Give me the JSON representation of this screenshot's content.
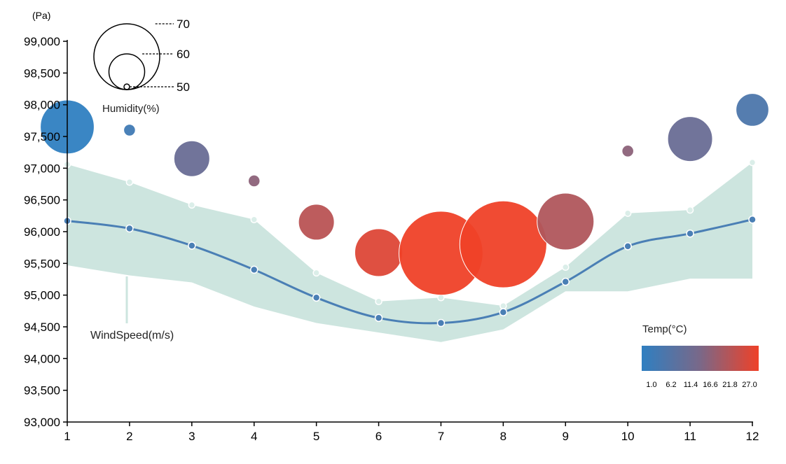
{
  "chart_data": {
    "type": "line",
    "y_unit_label": "(Pa)",
    "x": [
      1,
      2,
      3,
      4,
      5,
      6,
      7,
      8,
      9,
      10,
      11,
      12
    ],
    "xticks": [
      "1",
      "2",
      "3",
      "4",
      "5",
      "6",
      "7",
      "8",
      "9",
      "10",
      "11",
      "12"
    ],
    "ylim": [
      93000,
      99000
    ],
    "yticks": [
      "93,000",
      "93,500",
      "94,000",
      "94,500",
      "95,000",
      "95,500",
      "96,000",
      "96,500",
      "97,000",
      "97,500",
      "98,000",
      "98,500",
      "99,000"
    ],
    "ytick_values": [
      93000,
      93500,
      94000,
      94500,
      95000,
      95500,
      96000,
      96500,
      97000,
      97500,
      98000,
      98500,
      99000
    ],
    "pressure_line": [
      96170,
      96050,
      95780,
      95400,
      94960,
      94640,
      94560,
      94730,
      95210,
      95770,
      95970,
      96190
    ],
    "band_upper": [
      97060,
      96780,
      96420,
      96190,
      95350,
      94900,
      94960,
      94830,
      95440,
      96290,
      96340,
      97090
    ],
    "band_lower": [
      95470,
      95310,
      95200,
      94820,
      94560,
      94410,
      94260,
      94460,
      95060,
      95060,
      95260,
      95260
    ],
    "band_label": "WindSpeed(m/s)",
    "bubbles": {
      "y": [
        97650,
        97600,
        97150,
        96800,
        96150,
        95670,
        95660,
        95800,
        96160,
        97270,
        97460,
        97920
      ],
      "humidity": [
        66,
        52,
        60,
        52,
        60,
        64,
        76,
        77,
        67,
        52,
        63,
        59
      ],
      "temp": [
        1.0,
        4.0,
        11.0,
        16.0,
        21.0,
        25.0,
        27.0,
        27.0,
        20.0,
        16.0,
        11.0,
        6.0
      ]
    },
    "size_legend": {
      "title": "Humidity(%)",
      "labels": [
        "70",
        "60",
        "50"
      ],
      "values": [
        70,
        60,
        50
      ]
    },
    "color_legend": {
      "title": "Temp(°C)",
      "ticks": [
        "1.0",
        "6.2",
        "11.4",
        "16.6",
        "21.8",
        "27.0"
      ],
      "min": 1.0,
      "max": 27.0,
      "color_low": "#2f7fc1",
      "color_mid": "#7a6888",
      "color_high": "#ef4128"
    },
    "colors": {
      "line": "#4a7fb5",
      "band": "#cde5df",
      "band_marker": "#dbeee9",
      "axis": "#000000"
    }
  }
}
